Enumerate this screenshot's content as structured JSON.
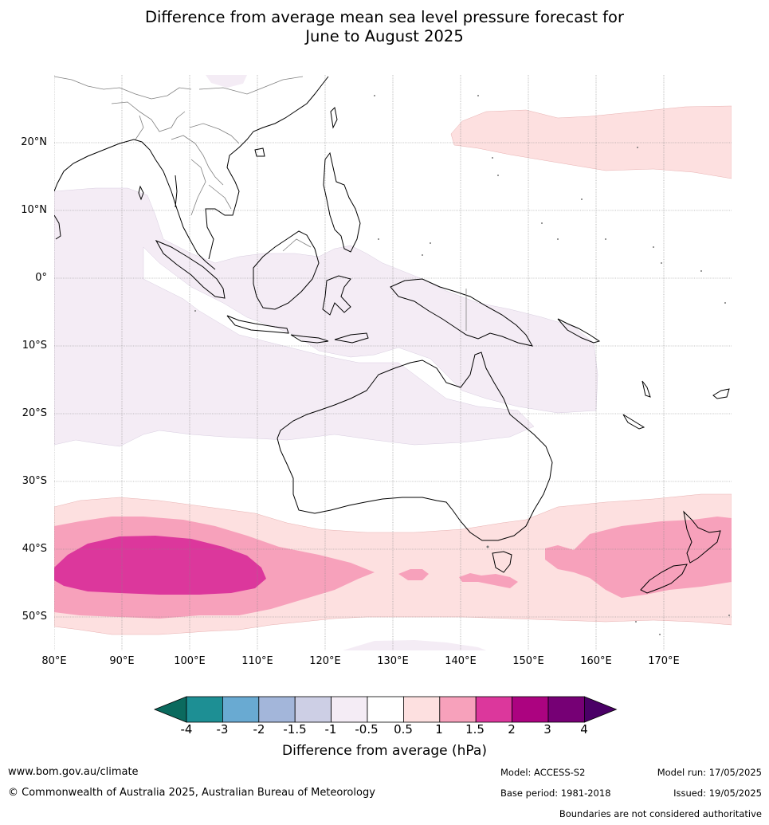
{
  "title_line1": "Difference from average mean sea level pressure forecast for",
  "title_line2": "June to August 2025",
  "map": {
    "lat_labels": [
      "20°N",
      "10°N",
      "0°",
      "10°S",
      "20°S",
      "30°S",
      "40°S",
      "50°S"
    ],
    "lon_labels": [
      "80°E",
      "90°E",
      "100°E",
      "110°E",
      "120°E",
      "130°E",
      "140°E",
      "150°E",
      "160°E",
      "170°E"
    ]
  },
  "colorbar": {
    "title": "Difference from average (hPa)",
    "tick_labels": [
      "-4",
      "-3",
      "-2",
      "-1.5",
      "-1",
      "-0.5",
      "0.5",
      "1",
      "1.5",
      "2",
      "3",
      "4"
    ],
    "colors": [
      "#1d8f94",
      "#69aad2",
      "#a3b6da",
      "#cdcfe5",
      "#f4ecf5",
      "#ffffff",
      "#fde0e0",
      "#f7a1bb",
      "#dc379c",
      "#ac0380",
      "#760075"
    ],
    "low_extend_color": "#0b6a5e",
    "high_extend_color": "#4a0066"
  },
  "footer": {
    "website": "www.bom.gov.au/climate",
    "copyright": "© Commonwealth of Australia 2025, Australian Bureau of Meteorology",
    "model": "Model: ACCESS-S2",
    "base_period": "Base period: 1981-2018",
    "model_run": "Model run: 17/05/2025",
    "issued": "Issued: 19/05/2025",
    "disclaimer": "Boundaries are not considered authoritative"
  }
}
